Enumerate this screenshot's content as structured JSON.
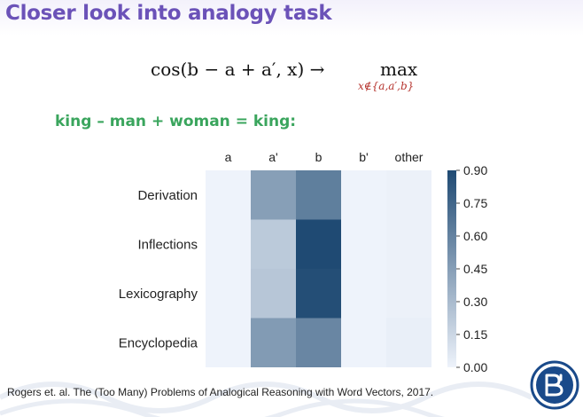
{
  "slide": {
    "title": "Closer look into analogy task",
    "example": "king – man + woman = king:",
    "citation": "Rogers et. al. The (Too Many) Problems of Analogical Reasoning with Word Vectors, 2017."
  },
  "formula": {
    "lhs": "cos(b − a + a′, x) →",
    "max": "max",
    "subscript": "x∉{a,a′,b}"
  },
  "logo": {
    "icon": "hse-university-logo-icon",
    "color": "#1a4a8a"
  },
  "colors": {
    "low": "#eef3fb",
    "high": "#1f4a73"
  },
  "chart_data": {
    "type": "heatmap",
    "x": [
      "a",
      "a'",
      "b",
      "b'",
      "other"
    ],
    "y": [
      "Derivation",
      "Inflections",
      "Lexicography",
      "Encyclopedia"
    ],
    "values": [
      [
        0.0,
        0.45,
        0.62,
        0.0,
        0.01
      ],
      [
        0.0,
        0.22,
        0.9,
        0.0,
        0.01
      ],
      [
        0.0,
        0.24,
        0.88,
        0.0,
        0.01
      ],
      [
        0.0,
        0.47,
        0.58,
        0.0,
        0.02
      ]
    ],
    "colorbar": {
      "range": [
        0.0,
        0.9
      ],
      "ticks": [
        "0.90",
        "0.75",
        "0.60",
        "0.45",
        "0.30",
        "0.15",
        "0.00"
      ]
    }
  }
}
